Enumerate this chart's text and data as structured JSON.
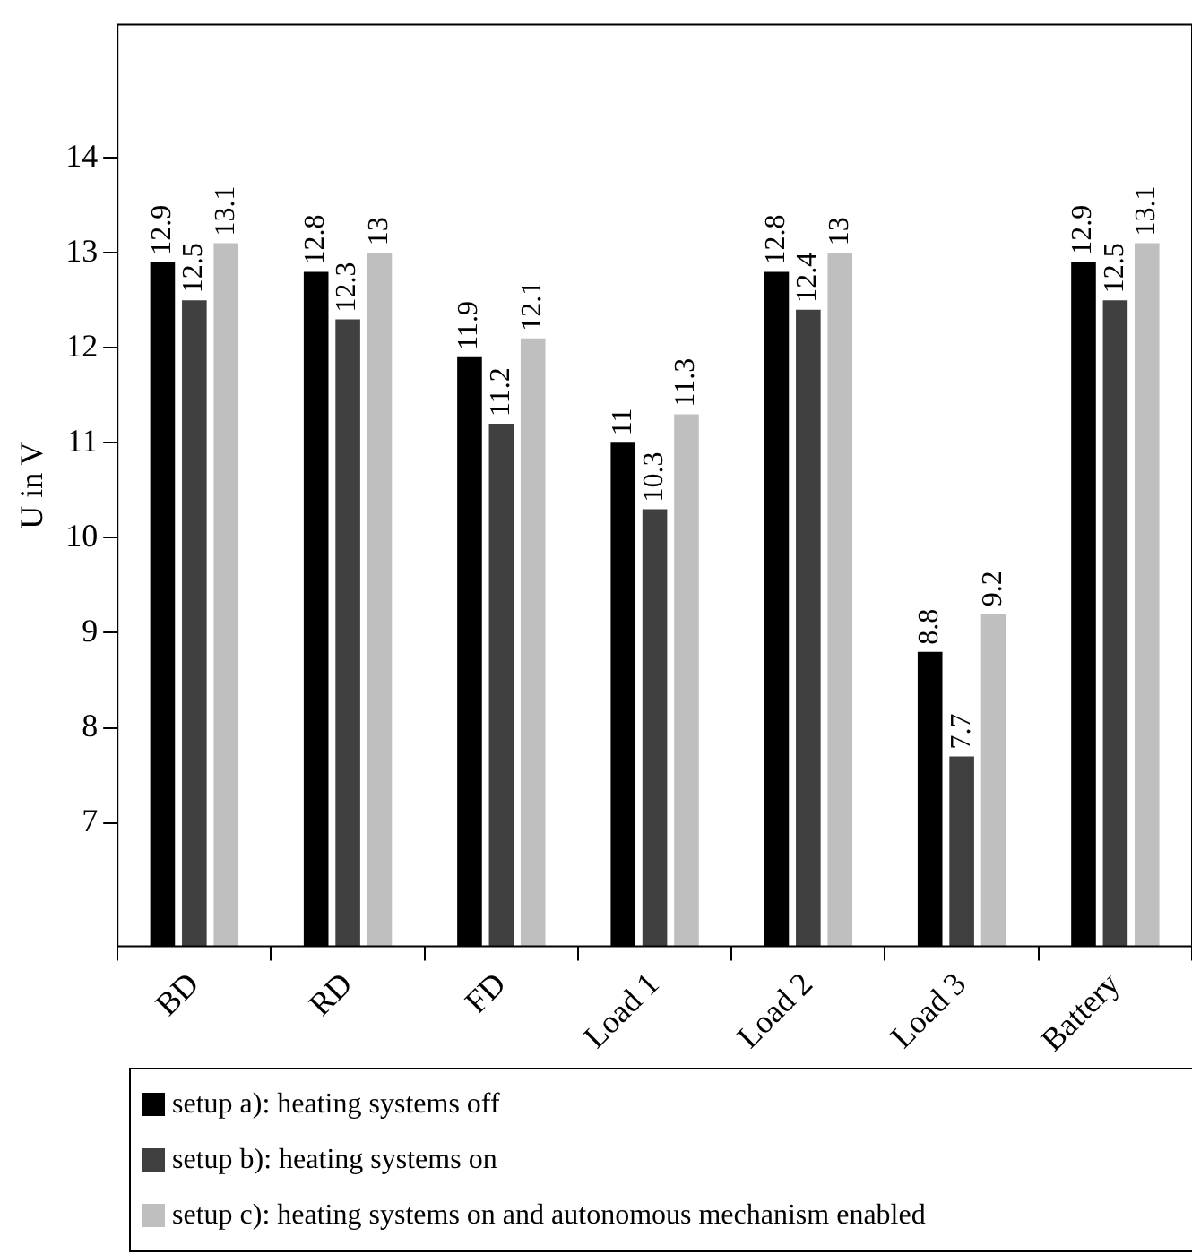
{
  "chart_data": {
    "type": "bar",
    "ylabel": "U in V",
    "categories": [
      "BD",
      "RD",
      "FD",
      "Load 1",
      "Load 2",
      "Load 3",
      "Battery"
    ],
    "series": [
      {
        "name": "setup a): heating systems off",
        "color": "#000000",
        "values": [
          12.9,
          12.8,
          11.9,
          11,
          12.8,
          8.8,
          12.9
        ]
      },
      {
        "name": "setup b): heating systems on",
        "color": "#404040",
        "values": [
          12.5,
          12.3,
          11.2,
          10.3,
          12.4,
          7.7,
          12.5
        ]
      },
      {
        "name": "setup c): heating systems on and autonomous mechanism enabled",
        "color": "#bfbfbf",
        "values": [
          13.1,
          13,
          12.1,
          11.3,
          13,
          9.2,
          13.1
        ]
      }
    ],
    "ylim": [
      5.7,
      15.4
    ],
    "yticks": [
      7,
      8,
      9,
      10,
      11,
      12,
      13,
      14
    ],
    "grid": false,
    "legend": "bottom",
    "data_labels": true
  }
}
